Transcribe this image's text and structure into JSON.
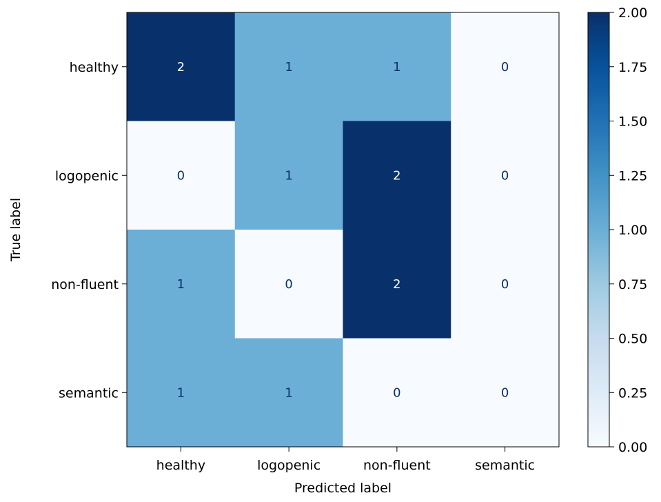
{
  "chart_data": {
    "type": "heatmap",
    "title": "",
    "xlabel": "Predicted label",
    "ylabel": "True label",
    "x_categories": [
      "healthy",
      "logopenic",
      "non-fluent",
      "semantic"
    ],
    "y_categories": [
      "healthy",
      "logopenic",
      "non-fluent",
      "semantic"
    ],
    "values": [
      [
        2,
        1,
        1,
        0
      ],
      [
        0,
        1,
        2,
        0
      ],
      [
        1,
        0,
        2,
        0
      ],
      [
        1,
        1,
        0,
        0
      ]
    ],
    "colormap": "Blues",
    "colormap_stops": [
      "#f7fbff",
      "#deebf7",
      "#c6dbef",
      "#9ecae1",
      "#6baed6",
      "#4292c6",
      "#2171b5",
      "#08519c",
      "#08306b"
    ],
    "text_color_light": "#f7fbff",
    "text_color_dark": "#08306b",
    "vmin": 0,
    "vmax": 2,
    "colorbar_ticks": [
      "0.00",
      "0.25",
      "0.50",
      "0.75",
      "1.00",
      "1.25",
      "1.50",
      "1.75",
      "2.00"
    ],
    "grid": false
  }
}
